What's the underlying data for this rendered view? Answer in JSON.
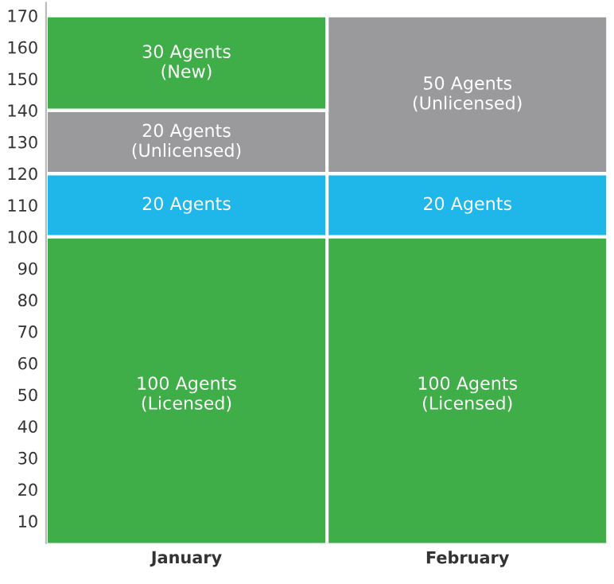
{
  "chart_data": {
    "type": "bar",
    "stacked": true,
    "categories": [
      "January",
      "February"
    ],
    "series": [
      {
        "color": "#3fae49",
        "values": [
          100,
          100
        ],
        "value_labels": [
          "100 Agents\n(Licensed)",
          "100 Agents\n(Licensed)"
        ]
      },
      {
        "color": "#1fb6ea",
        "values": [
          20,
          20
        ],
        "value_labels": [
          "20 Agents",
          "20 Agents"
        ]
      },
      {
        "color": "#9a9a9c",
        "values": [
          20,
          50
        ],
        "value_labels": [
          "20 Agents\n(Unlicensed)",
          "50 Agents\n(Unlicensed)"
        ]
      },
      {
        "color": "#3fae49",
        "values": [
          30,
          null
        ],
        "value_labels": [
          "30 Agents\n(New)",
          null
        ]
      }
    ],
    "ylim": [
      3,
      174
    ],
    "yticks": [
      10,
      20,
      30,
      40,
      50,
      60,
      70,
      80,
      90,
      100,
      110,
      120,
      130,
      140,
      150,
      160,
      170
    ],
    "grid": false,
    "legend": false
  }
}
